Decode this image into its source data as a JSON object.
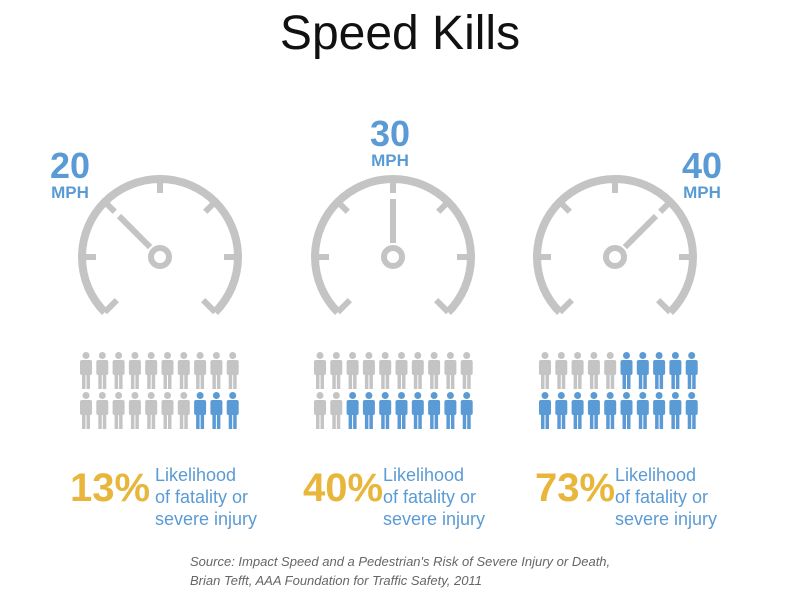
{
  "title": "Speed Kills",
  "colors": {
    "accent_blue": "#5B9BD5",
    "gold": "#E8B63A",
    "gray": "#C4C4C4"
  },
  "panels": [
    {
      "speed": "20",
      "unit": "MPH",
      "percent": "13%",
      "label_lines": [
        "Likelihood",
        "of fatality or",
        "severe injury"
      ],
      "people_total": 20,
      "people_highlighted": 3,
      "needle": "upper-left"
    },
    {
      "speed": "30",
      "unit": "MPH",
      "percent": "40%",
      "label_lines": [
        "Likelihood",
        "of fatality or",
        "severe injury"
      ],
      "people_total": 20,
      "people_highlighted": 8,
      "needle": "up"
    },
    {
      "speed": "40",
      "unit": "MPH",
      "percent": "73%",
      "label_lines": [
        "Likelihood",
        "of fatality or",
        "severe injury"
      ],
      "people_total": 20,
      "people_highlighted": 15,
      "needle": "upper-right"
    }
  ],
  "source_lines": [
    "Source: Impact Speed and a Pedestrian's Risk of Severe Injury or Death,",
    "Brian Tefft, AAA Foundation for Traffic Safety, 2011"
  ]
}
